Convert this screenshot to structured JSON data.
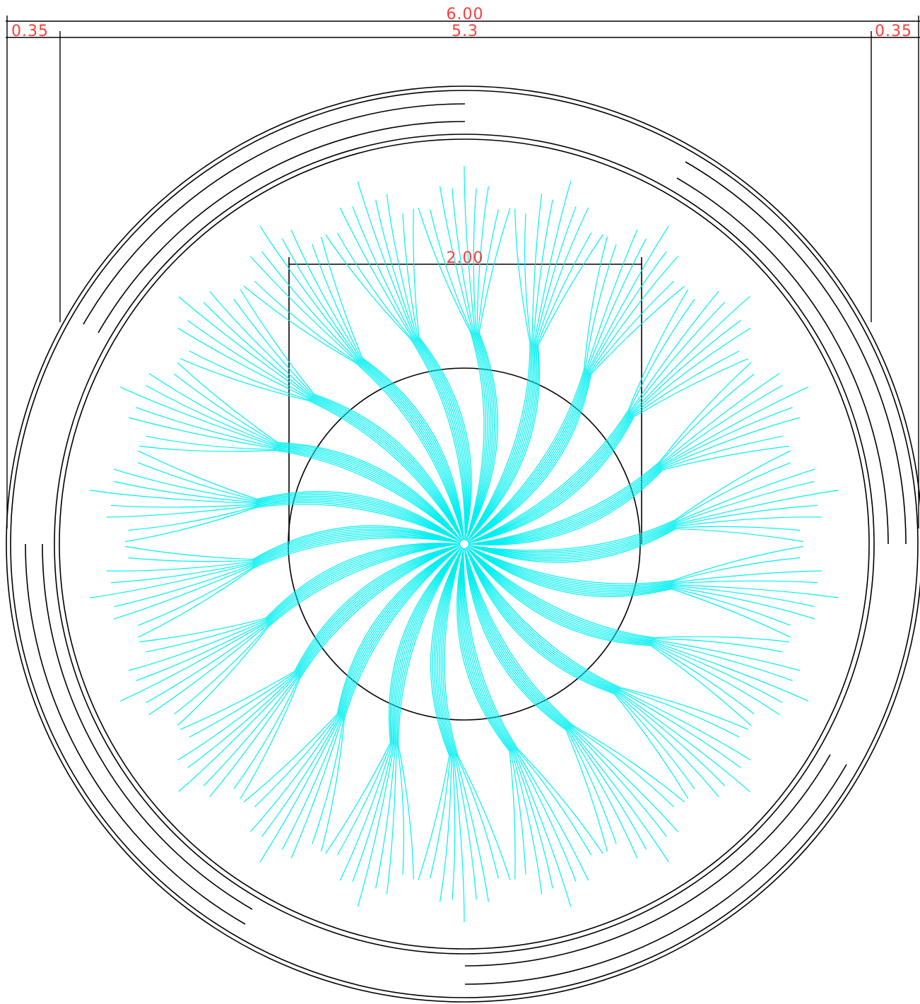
{
  "colors": {
    "dimension_text": "#ff3b3b",
    "linework": "#000000",
    "flow_lines": "#00f0f0",
    "background": "#ffffff"
  },
  "dimensions": {
    "overall_width": "6.00",
    "left_wall": "0.35",
    "inner_width": "5.3",
    "right_wall": "0.35",
    "inner_opening": "2.00"
  },
  "flow_pattern": {
    "arms": 22,
    "strands_per_arm": 9,
    "swirl": "clockwise"
  }
}
